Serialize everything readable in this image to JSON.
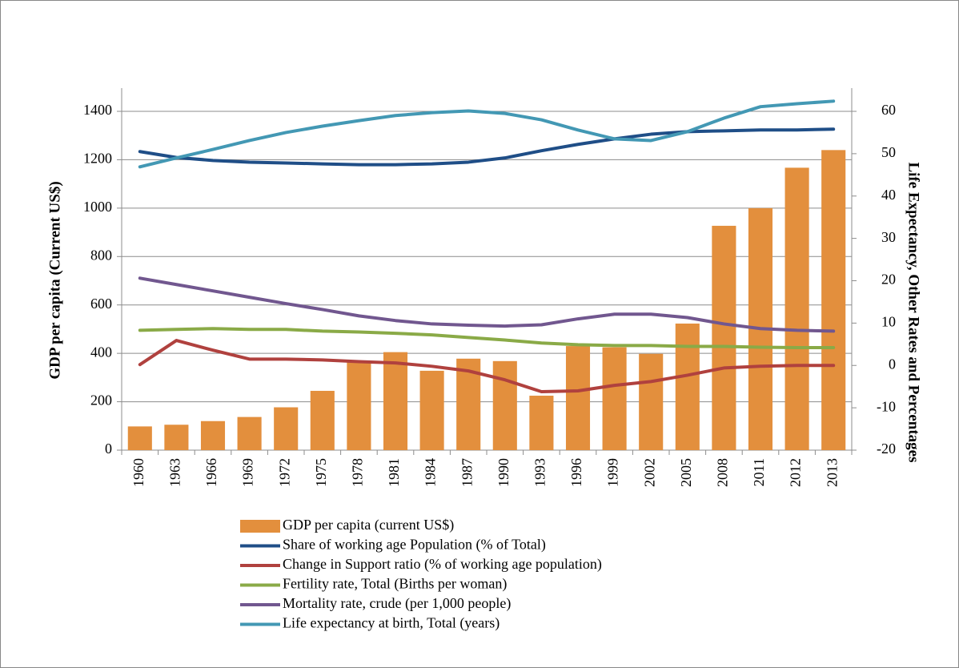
{
  "chart_data": {
    "type": "combo",
    "ylabel": "GDP per capita (Current US$)",
    "y2label": "Life Expectancy, Other Rates and Percentages",
    "categories": [
      "1960",
      "1963",
      "1966",
      "1969",
      "1972",
      "1975",
      "1978",
      "1981",
      "1984",
      "1987",
      "1990",
      "1993",
      "1996",
      "1999",
      "2002",
      "2005",
      "2008",
      "2011",
      "2012",
      "2013"
    ],
    "ylim": [
      0,
      1400
    ],
    "yticks": [
      0,
      200,
      400,
      600,
      800,
      1000,
      1200,
      1400
    ],
    "y2lim": [
      -20,
      60
    ],
    "y2ticks": [
      -20,
      -10,
      0,
      10,
      20,
      30,
      40,
      50,
      60
    ],
    "grid": true,
    "series": [
      {
        "name": "GDP per capita (current US$)",
        "type": "bar",
        "axis": "y",
        "color": "#e38f3d",
        "values": [
          98,
          105,
          120,
          137,
          177,
          245,
          368,
          405,
          328,
          378,
          368,
          225,
          430,
          425,
          398,
          523,
          927,
          1000,
          1167,
          1240
        ]
      },
      {
        "name": "Share of working age Population (% of Total)",
        "type": "line",
        "axis": "y2",
        "color": "#1f4e87",
        "values": [
          50.5,
          49.1,
          48.4,
          48.0,
          47.8,
          47.6,
          47.4,
          47.4,
          47.6,
          48.0,
          49.0,
          50.7,
          52.2,
          53.5,
          54.6,
          55.2,
          55.4,
          55.6,
          55.6,
          55.8
        ]
      },
      {
        "name": "Change in Support ratio (% of working age population)",
        "type": "line",
        "axis": "y2",
        "color": "#b0413e",
        "values": [
          0.2,
          5.9,
          3.6,
          1.5,
          1.5,
          1.3,
          0.9,
          0.6,
          -0.2,
          -1.3,
          -3.4,
          -6.2,
          -6.0,
          -4.7,
          -3.8,
          -2.3,
          -0.6,
          -0.2,
          0,
          0
        ]
      },
      {
        "name": "Fertility rate, Total (Births per woman)",
        "type": "line",
        "axis": "y2",
        "color": "#8aaa47",
        "values": [
          8.3,
          8.5,
          8.7,
          8.5,
          8.5,
          8.1,
          7.9,
          7.6,
          7.2,
          6.6,
          6.0,
          5.3,
          4.9,
          4.7,
          4.7,
          4.5,
          4.5,
          4.3,
          4.2,
          4.2
        ]
      },
      {
        "name": "Mortality rate, crude (per 1,000 people)",
        "type": "line",
        "axis": "y2",
        "color": "#71578f",
        "values": [
          20.6,
          19.1,
          17.6,
          16.1,
          14.6,
          13.2,
          11.7,
          10.6,
          9.8,
          9.5,
          9.3,
          9.6,
          11.0,
          12.1,
          12.1,
          11.3,
          9.8,
          8.7,
          8.3,
          8.1
        ]
      },
      {
        "name": "Life expectancy at birth, Total (years)",
        "type": "line",
        "axis": "y2",
        "color": "#4398b4",
        "values": [
          46.9,
          49.0,
          51.0,
          53.1,
          55.0,
          56.5,
          57.8,
          59.0,
          59.7,
          60.1,
          59.5,
          58.0,
          55.6,
          53.5,
          53.1,
          55.2,
          58.4,
          61.1,
          61.8,
          62.4
        ]
      }
    ]
  }
}
